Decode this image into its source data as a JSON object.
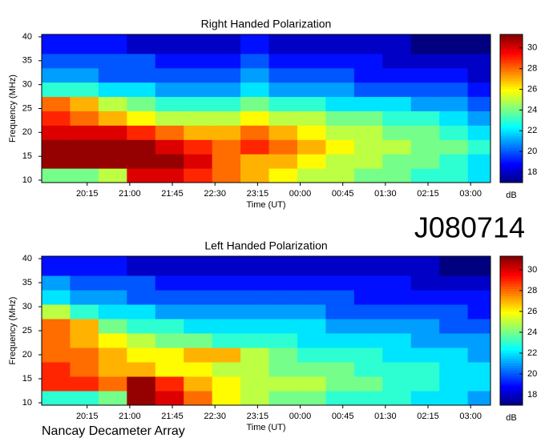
{
  "chart_data": [
    {
      "type": "heatmap",
      "title": "Right Handed Polarization",
      "xlabel": "Time (UT)",
      "ylabel": "Frequency (MHz)",
      "colorbar_label": "dB",
      "xlim": [
        19.45,
        27.35
      ],
      "ylim": [
        9.5,
        40.5
      ],
      "clim": [
        17,
        31.3
      ],
      "xticks": [
        {
          "value": 20.25,
          "label": "20:15"
        },
        {
          "value": 21,
          "label": "21:00"
        },
        {
          "value": 21.75,
          "label": "21:45"
        },
        {
          "value": 22.5,
          "label": "22:30"
        },
        {
          "value": 23.25,
          "label": "23:15"
        },
        {
          "value": 24,
          "label": "00:00"
        },
        {
          "value": 24.75,
          "label": "00:45"
        },
        {
          "value": 25.5,
          "label": "01:30"
        },
        {
          "value": 26.25,
          "label": "02:15"
        },
        {
          "value": 27,
          "label": "03:00"
        }
      ],
      "yticks": [
        10,
        15,
        20,
        25,
        30,
        35,
        40
      ],
      "cticks": [
        18,
        20,
        22,
        24,
        26,
        28,
        30
      ],
      "xbins": [
        19.45,
        19.95,
        20.45,
        20.95,
        21.45,
        21.95,
        22.45,
        22.95,
        23.45,
        23.95,
        24.45,
        24.95,
        25.45,
        25.95,
        26.45,
        26.95,
        27.35
      ],
      "ybins": [
        9.5,
        12.5,
        15.5,
        18.5,
        21.5,
        24.5,
        27.5,
        30.5,
        33.5,
        36.5,
        40.5
      ],
      "values": [
        [
          24,
          24,
          25,
          30,
          30,
          29,
          28,
          27,
          26,
          25,
          25,
          24,
          24,
          23,
          23,
          22
        ],
        [
          31,
          31,
          31,
          31,
          31,
          30,
          28,
          27,
          27,
          26,
          25,
          25,
          24,
          24,
          23,
          22
        ],
        [
          31,
          31,
          31,
          31,
          30,
          29,
          28,
          29,
          28,
          27,
          26,
          25,
          25,
          24,
          24,
          23
        ],
        [
          30,
          30,
          30,
          29,
          28,
          27,
          27,
          28,
          27,
          26,
          25,
          25,
          24,
          24,
          23,
          22
        ],
        [
          29,
          28,
          27,
          26,
          25,
          25,
          25,
          26,
          25,
          25,
          24,
          24,
          23,
          23,
          22,
          21
        ],
        [
          28,
          27,
          25,
          24,
          23,
          23,
          23,
          24,
          23,
          23,
          22,
          22,
          22,
          21,
          21,
          20
        ],
        [
          23,
          23,
          22,
          22,
          21,
          21,
          21,
          22,
          21,
          21,
          21,
          20,
          20,
          20,
          20,
          19
        ],
        [
          21,
          21,
          20,
          20,
          20,
          20,
          20,
          21,
          20,
          20,
          20,
          19,
          19,
          19,
          19,
          18
        ],
        [
          20,
          20,
          20,
          20,
          19,
          19,
          19,
          20,
          19,
          19,
          19,
          19,
          18,
          18,
          18,
          18
        ],
        [
          19,
          19,
          19,
          18,
          18,
          18,
          18,
          19,
          18,
          18,
          18,
          18,
          18,
          17,
          17,
          17
        ]
      ]
    },
    {
      "type": "heatmap",
      "title": "Left Handed Polarization",
      "xlabel": "Time (UT)",
      "ylabel": "Frequency (MHz)",
      "colorbar_label": "dB",
      "xlim": [
        19.45,
        27.35
      ],
      "ylim": [
        9.5,
        40.5
      ],
      "clim": [
        17,
        31.3
      ],
      "xticks": [
        {
          "value": 20.25,
          "label": "20:15"
        },
        {
          "value": 21,
          "label": "21:00"
        },
        {
          "value": 21.75,
          "label": "21:45"
        },
        {
          "value": 22.5,
          "label": "22:30"
        },
        {
          "value": 23.25,
          "label": "23:15"
        },
        {
          "value": 24,
          "label": "00:00"
        },
        {
          "value": 24.75,
          "label": "00:45"
        },
        {
          "value": 25.5,
          "label": "01:30"
        },
        {
          "value": 26.25,
          "label": "02:15"
        },
        {
          "value": 27,
          "label": "03:00"
        }
      ],
      "yticks": [
        10,
        15,
        20,
        25,
        30,
        35,
        40
      ],
      "cticks": [
        18,
        20,
        22,
        24,
        26,
        28,
        30
      ],
      "xbins": [
        19.45,
        19.95,
        20.45,
        20.95,
        21.45,
        21.95,
        22.45,
        22.95,
        23.45,
        23.95,
        24.45,
        24.95,
        25.45,
        25.95,
        26.45,
        26.95,
        27.35
      ],
      "ybins": [
        9.5,
        12.5,
        15.5,
        18.5,
        21.5,
        24.5,
        27.5,
        30.5,
        33.5,
        36.5,
        40.5
      ],
      "values": [
        [
          23,
          23,
          24,
          31,
          30,
          28,
          26,
          25,
          24,
          24,
          23,
          23,
          23,
          22,
          22,
          21
        ],
        [
          29,
          29,
          28,
          31,
          29,
          27,
          26,
          25,
          25,
          25,
          24,
          24,
          23,
          23,
          22,
          22
        ],
        [
          29,
          28,
          27,
          27,
          26,
          26,
          25,
          25,
          24,
          24,
          24,
          23,
          23,
          23,
          22,
          22
        ],
        [
          28,
          28,
          27,
          26,
          26,
          27,
          27,
          25,
          24,
          23,
          23,
          23,
          22,
          22,
          22,
          21
        ],
        [
          28,
          27,
          26,
          25,
          24,
          24,
          23,
          23,
          23,
          22,
          22,
          22,
          22,
          21,
          21,
          21
        ],
        [
          28,
          27,
          24,
          23,
          23,
          22,
          22,
          22,
          22,
          22,
          21,
          21,
          21,
          21,
          20,
          20
        ],
        [
          25,
          23,
          22,
          22,
          21,
          21,
          21,
          21,
          21,
          21,
          20,
          20,
          20,
          20,
          20,
          19
        ],
        [
          22,
          21,
          21,
          20,
          20,
          20,
          20,
          20,
          20,
          20,
          20,
          19,
          19,
          19,
          19,
          19
        ],
        [
          21,
          20,
          20,
          20,
          19,
          19,
          19,
          19,
          19,
          19,
          19,
          19,
          19,
          18,
          18,
          18
        ],
        [
          19,
          19,
          19,
          18,
          18,
          18,
          18,
          18,
          18,
          18,
          18,
          18,
          18,
          18,
          17,
          17
        ]
      ]
    }
  ],
  "label": "J080714",
  "footer": "Nancay Decameter Array"
}
